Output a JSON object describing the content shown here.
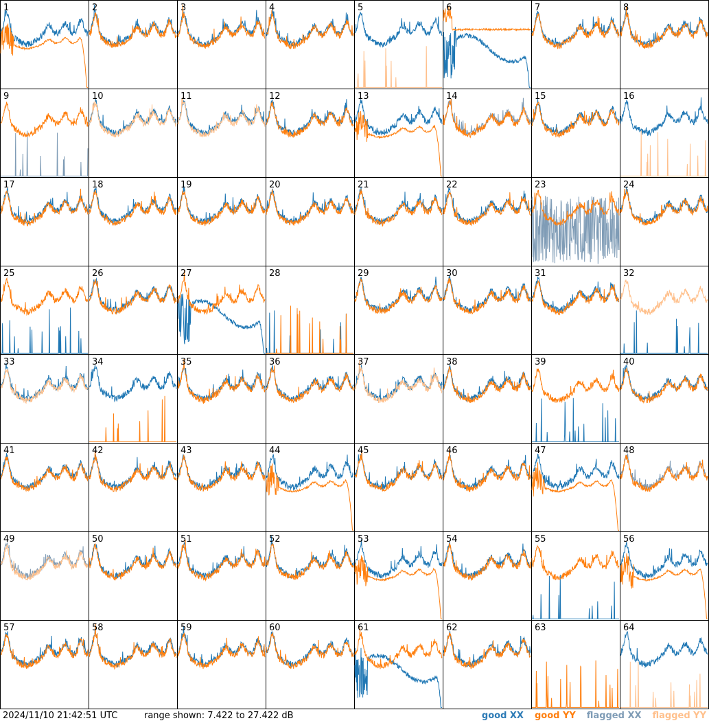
{
  "footer": {
    "timestamp": "2024/11/10 21:42:51 UTC",
    "range_text": "range shown: 7.422 to 27.422 dB",
    "legend": {
      "good_xx": "good XX",
      "good_yy": "good YY",
      "flagged_xx": "flagged XX",
      "flagged_yy": "flagged YY"
    }
  },
  "colors": {
    "good_xx": "#1f77b4",
    "good_yy": "#ff7f0e",
    "flagged_xx": "#7f9cb6",
    "flagged_yy": "#ffc08c",
    "border": "#000000"
  },
  "chart_data": {
    "type": "line",
    "grid_layout": "8x8",
    "ylim": [
      7.422,
      27.422
    ],
    "yunit": "dB",
    "panels": [
      {
        "id": "1",
        "xx": "good",
        "yy": "good",
        "xx_shape": "normal",
        "yy_shape": "rolloff"
      },
      {
        "id": "2",
        "xx": "good",
        "yy": "good",
        "xx_shape": "normal",
        "yy_shape": "normal"
      },
      {
        "id": "3",
        "xx": "good",
        "yy": "good",
        "xx_shape": "normal",
        "yy_shape": "normal"
      },
      {
        "id": "4",
        "xx": "good",
        "yy": "good",
        "xx_shape": "normal",
        "yy_shape": "normal"
      },
      {
        "id": "5",
        "xx": "good",
        "yy": "flagged",
        "xx_shape": "normal",
        "yy_shape": "spikes"
      },
      {
        "id": "6",
        "xx": "good",
        "yy": "good",
        "xx_shape": "dip",
        "yy_shape": "flat"
      },
      {
        "id": "7",
        "xx": "good",
        "yy": "good",
        "xx_shape": "normal",
        "yy_shape": "normal"
      },
      {
        "id": "8",
        "xx": "good",
        "yy": "good",
        "xx_shape": "normal",
        "yy_shape": "normal"
      },
      {
        "id": "9",
        "xx": "flagged",
        "yy": "good",
        "xx_shape": "spikes",
        "yy_shape": "normal"
      },
      {
        "id": "10",
        "xx": "good",
        "yy": "flagged",
        "xx_shape": "normal",
        "yy_shape": "normal"
      },
      {
        "id": "11",
        "xx": "good",
        "yy": "flagged",
        "xx_shape": "normal",
        "yy_shape": "normal"
      },
      {
        "id": "12",
        "xx": "good",
        "yy": "good",
        "xx_shape": "normal",
        "yy_shape": "normal"
      },
      {
        "id": "13",
        "xx": "good",
        "yy": "good",
        "xx_shape": "normal",
        "yy_shape": "rolloff"
      },
      {
        "id": "14",
        "xx": "flagged",
        "yy": "good",
        "xx_shape": "normal",
        "yy_shape": "normal"
      },
      {
        "id": "15",
        "xx": "good",
        "yy": "good",
        "xx_shape": "normal",
        "yy_shape": "normal"
      },
      {
        "id": "16",
        "xx": "good",
        "yy": "flagged",
        "xx_shape": "normal",
        "yy_shape": "spikes"
      },
      {
        "id": "17",
        "xx": "good",
        "yy": "good",
        "xx_shape": "normal",
        "yy_shape": "normal"
      },
      {
        "id": "18",
        "xx": "good",
        "yy": "good",
        "xx_shape": "normal",
        "yy_shape": "normal"
      },
      {
        "id": "19",
        "xx": "good",
        "yy": "good",
        "xx_shape": "normal",
        "yy_shape": "normal"
      },
      {
        "id": "20",
        "xx": "good",
        "yy": "good",
        "xx_shape": "normal",
        "yy_shape": "normal"
      },
      {
        "id": "21",
        "xx": "good",
        "yy": "good",
        "xx_shape": "normal",
        "yy_shape": "normal"
      },
      {
        "id": "22",
        "xx": "good",
        "yy": "good",
        "xx_shape": "normal",
        "yy_shape": "normal"
      },
      {
        "id": "23",
        "xx": "flagged",
        "yy": "good",
        "xx_shape": "noise",
        "yy_shape": "normal"
      },
      {
        "id": "24",
        "xx": "good",
        "yy": "good",
        "xx_shape": "normal",
        "yy_shape": "normal"
      },
      {
        "id": "25",
        "xx": "good",
        "yy": "good",
        "xx_shape": "spikes",
        "yy_shape": "normal"
      },
      {
        "id": "26",
        "xx": "good",
        "yy": "good",
        "xx_shape": "normal",
        "yy_shape": "normal"
      },
      {
        "id": "27",
        "xx": "good",
        "yy": "good",
        "xx_shape": "dip",
        "yy_shape": "normal"
      },
      {
        "id": "28",
        "xx": "good",
        "yy": "good",
        "xx_shape": "spikes",
        "yy_shape": "spikes"
      },
      {
        "id": "29",
        "xx": "good",
        "yy": "good",
        "xx_shape": "normal",
        "yy_shape": "normal"
      },
      {
        "id": "30",
        "xx": "good",
        "yy": "good",
        "xx_shape": "normal",
        "yy_shape": "normal"
      },
      {
        "id": "31",
        "xx": "good",
        "yy": "good",
        "xx_shape": "normal",
        "yy_shape": "normal"
      },
      {
        "id": "32",
        "xx": "good",
        "yy": "flagged",
        "xx_shape": "spikes",
        "yy_shape": "normal"
      },
      {
        "id": "33",
        "xx": "good",
        "yy": "flagged",
        "xx_shape": "normal",
        "yy_shape": "normal"
      },
      {
        "id": "34",
        "xx": "good",
        "yy": "good",
        "xx_shape": "normal",
        "yy_shape": "spikes"
      },
      {
        "id": "35",
        "xx": "good",
        "yy": "good",
        "xx_shape": "normal",
        "yy_shape": "normal"
      },
      {
        "id": "36",
        "xx": "good",
        "yy": "good",
        "xx_shape": "normal",
        "yy_shape": "normal"
      },
      {
        "id": "37",
        "xx": "good",
        "yy": "flagged",
        "xx_shape": "normal",
        "yy_shape": "normal"
      },
      {
        "id": "38",
        "xx": "good",
        "yy": "good",
        "xx_shape": "normal",
        "yy_shape": "normal"
      },
      {
        "id": "39",
        "xx": "good",
        "yy": "good",
        "xx_shape": "spikes",
        "yy_shape": "normal"
      },
      {
        "id": "40",
        "xx": "good",
        "yy": "good",
        "xx_shape": "normal",
        "yy_shape": "normal"
      },
      {
        "id": "41",
        "xx": "good",
        "yy": "good",
        "xx_shape": "normal",
        "yy_shape": "normal"
      },
      {
        "id": "42",
        "xx": "good",
        "yy": "good",
        "xx_shape": "normal",
        "yy_shape": "normal"
      },
      {
        "id": "43",
        "xx": "good",
        "yy": "good",
        "xx_shape": "normal",
        "yy_shape": "normal"
      },
      {
        "id": "44",
        "xx": "good",
        "yy": "good",
        "xx_shape": "normal",
        "yy_shape": "rolloff"
      },
      {
        "id": "45",
        "xx": "good",
        "yy": "good",
        "xx_shape": "normal",
        "yy_shape": "normal"
      },
      {
        "id": "46",
        "xx": "good",
        "yy": "good",
        "xx_shape": "normal",
        "yy_shape": "normal"
      },
      {
        "id": "47",
        "xx": "good",
        "yy": "good",
        "xx_shape": "normal",
        "yy_shape": "rolloff"
      },
      {
        "id": "48",
        "xx": "flagged",
        "yy": "good",
        "xx_shape": "normal",
        "yy_shape": "normal"
      },
      {
        "id": "49",
        "xx": "flagged",
        "yy": "flagged",
        "xx_shape": "normal",
        "yy_shape": "normal"
      },
      {
        "id": "50",
        "xx": "good",
        "yy": "good",
        "xx_shape": "normal",
        "yy_shape": "normal"
      },
      {
        "id": "51",
        "xx": "good",
        "yy": "good",
        "xx_shape": "normal",
        "yy_shape": "normal"
      },
      {
        "id": "52",
        "xx": "good",
        "yy": "good",
        "xx_shape": "normal",
        "yy_shape": "normal"
      },
      {
        "id": "53",
        "xx": "good",
        "yy": "good",
        "xx_shape": "normal",
        "yy_shape": "rolloff"
      },
      {
        "id": "54",
        "xx": "good",
        "yy": "good",
        "xx_shape": "normal",
        "yy_shape": "normal"
      },
      {
        "id": "55",
        "xx": "good",
        "yy": "good",
        "xx_shape": "spikes",
        "yy_shape": "normal"
      },
      {
        "id": "56",
        "xx": "good",
        "yy": "good",
        "xx_shape": "normal",
        "yy_shape": "rolloff"
      },
      {
        "id": "57",
        "xx": "good",
        "yy": "good",
        "xx_shape": "normal",
        "yy_shape": "normal"
      },
      {
        "id": "58",
        "xx": "good",
        "yy": "good",
        "xx_shape": "normal",
        "yy_shape": "normal"
      },
      {
        "id": "59",
        "xx": "good",
        "yy": "good",
        "xx_shape": "normal",
        "yy_shape": "normal"
      },
      {
        "id": "60",
        "xx": "good",
        "yy": "good",
        "xx_shape": "normal",
        "yy_shape": "normal"
      },
      {
        "id": "61",
        "xx": "good",
        "yy": "good",
        "xx_shape": "dip",
        "yy_shape": "normal"
      },
      {
        "id": "62",
        "xx": "good",
        "yy": "good",
        "xx_shape": "normal",
        "yy_shape": "normal"
      },
      {
        "id": "63",
        "xx": "good",
        "yy": "good",
        "xx_shape": "none",
        "yy_shape": "spikes"
      },
      {
        "id": "64",
        "xx": "good",
        "yy": "flagged",
        "xx_shape": "normal",
        "yy_shape": "spikes"
      }
    ]
  }
}
